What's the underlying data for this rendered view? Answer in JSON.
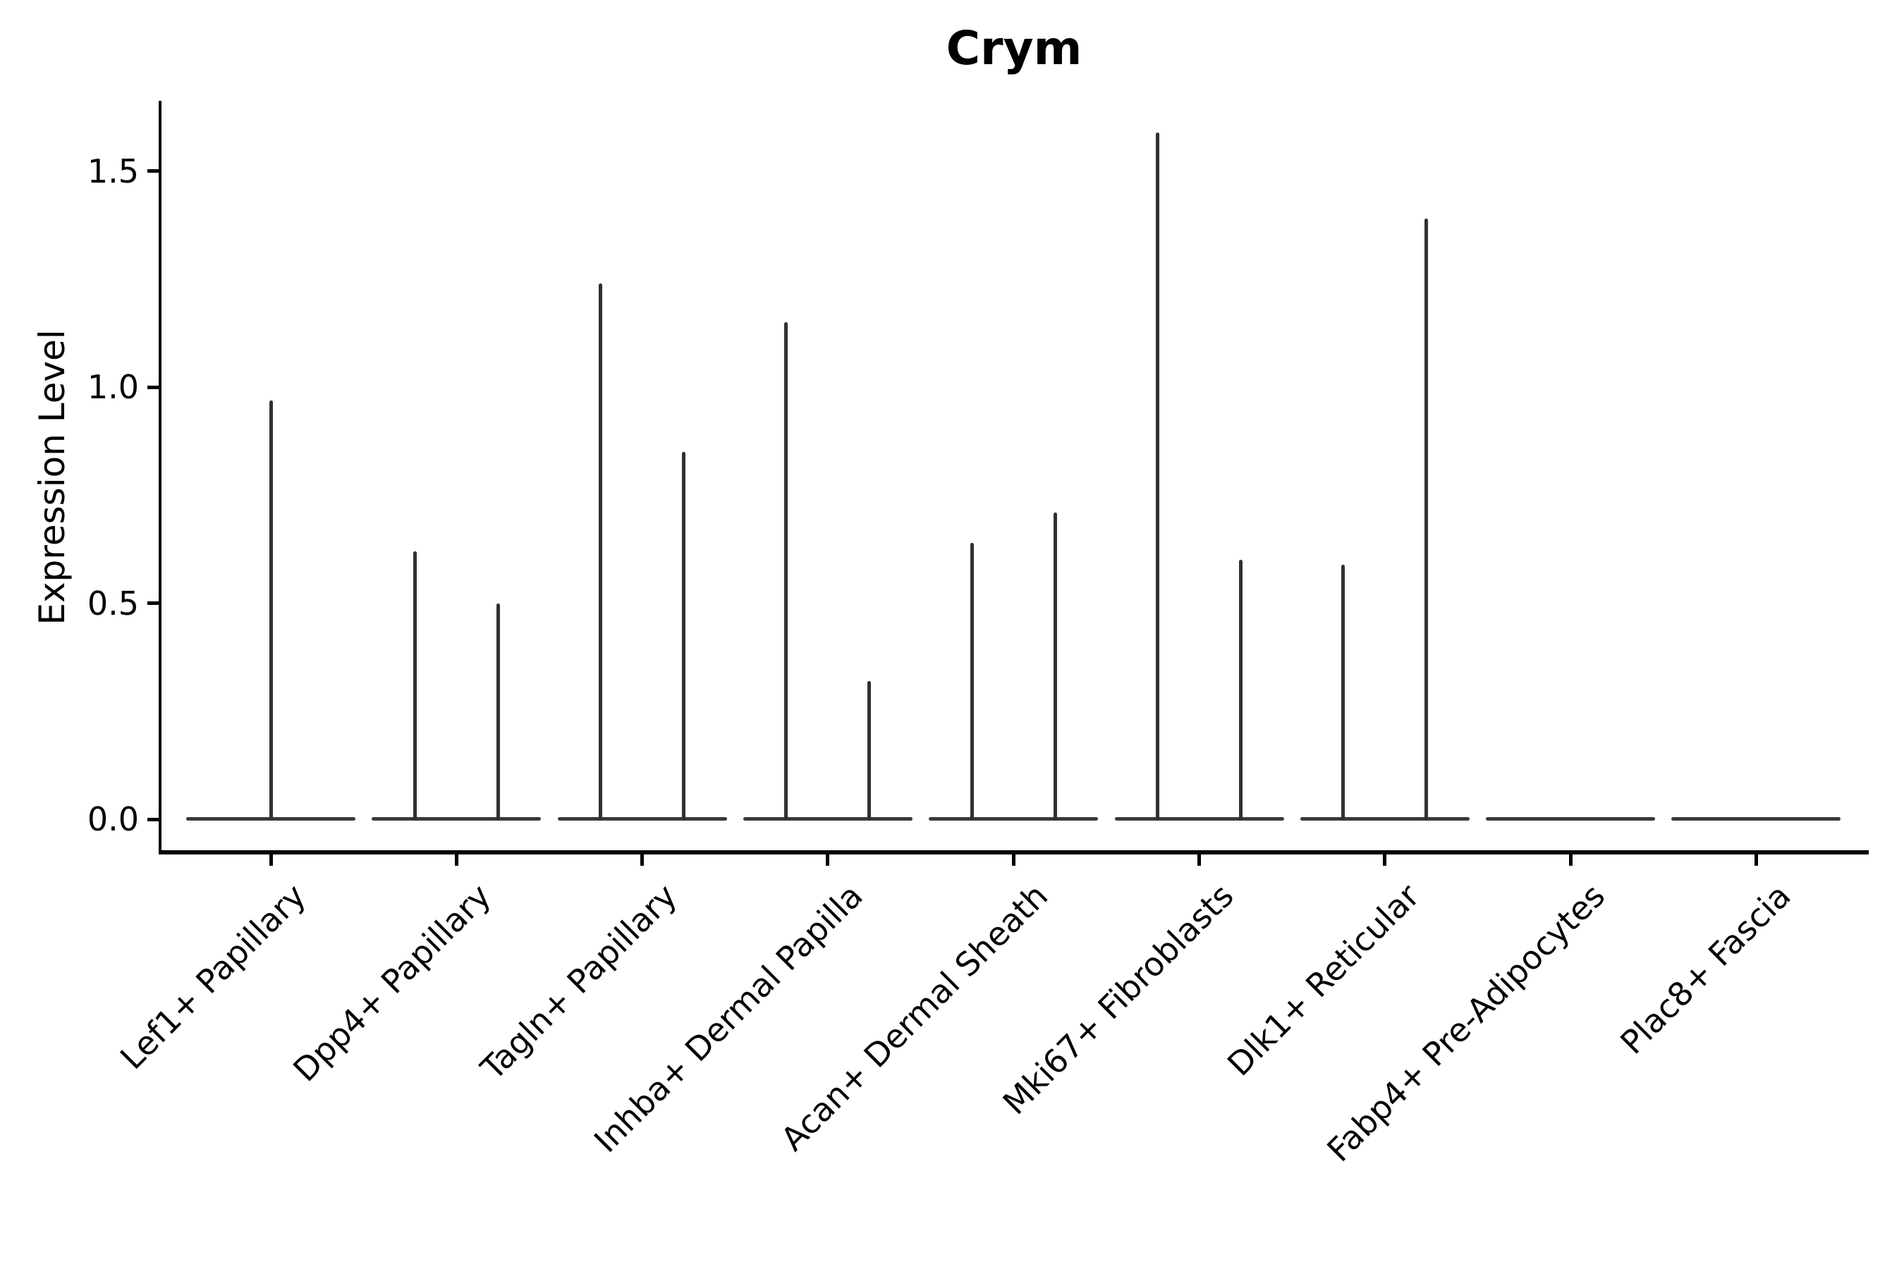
{
  "figure": {
    "title": "Crym",
    "y_axis": {
      "label": "Expression Level",
      "tick_labels": [
        "0.0",
        "0.5",
        "1.0",
        "1.5"
      ]
    },
    "x_axis": {
      "tick_labels": [
        "Lef1+ Papillary",
        "Dpp4+ Papillary",
        "Tagln+ Papillary",
        "Inhba+ Dermal Papilla",
        "Acan+ Dermal Sheath",
        "Mki67+ Fibroblasts",
        "Dlk1+ Reticular",
        "Fabp4+ Pre-Adipocytes",
        "Plac8+ Fascia"
      ]
    }
  },
  "chart_data": {
    "type": "violin",
    "title": "Crym",
    "xlabel": "",
    "ylabel": "Expression Level",
    "ylim": [
      -0.08,
      1.66
    ],
    "yticks": [
      0.0,
      0.5,
      1.0,
      1.5
    ],
    "grid": false,
    "legend_position": "none",
    "categories": [
      "Lef1+ Papillary",
      "Dpp4+ Papillary",
      "Tagln+ Papillary",
      "Inhba+ Dermal Papilla",
      "Acan+ Dermal Sheath",
      "Mki67+ Fibroblasts",
      "Dlk1+ Reticular",
      "Fabp4+ Pre-Adipocytes",
      "Plac8+ Fascia"
    ],
    "violins": [
      {
        "category": "Lef1+ Papillary",
        "spikes": [
          {
            "group": "center",
            "max_expression": 0.97
          }
        ]
      },
      {
        "category": "Dpp4+ Papillary",
        "spikes": [
          {
            "group": "left",
            "max_expression": 0.62
          },
          {
            "group": "right",
            "max_expression": 0.5
          }
        ]
      },
      {
        "category": "Tagln+ Papillary",
        "spikes": [
          {
            "group": "left",
            "max_expression": 1.24
          },
          {
            "group": "right",
            "max_expression": 0.85
          }
        ]
      },
      {
        "category": "Inhba+ Dermal Papilla",
        "spikes": [
          {
            "group": "left",
            "max_expression": 1.15
          },
          {
            "group": "right",
            "max_expression": 0.32
          }
        ]
      },
      {
        "category": "Acan+ Dermal Sheath",
        "spikes": [
          {
            "group": "left",
            "max_expression": 0.64
          },
          {
            "group": "right",
            "max_expression": 0.71
          }
        ]
      },
      {
        "category": "Mki67+ Fibroblasts",
        "spikes": [
          {
            "group": "left",
            "max_expression": 1.59
          },
          {
            "group": "right",
            "max_expression": 0.6
          }
        ]
      },
      {
        "category": "Dlk1+ Reticular",
        "spikes": [
          {
            "group": "left",
            "max_expression": 0.59
          },
          {
            "group": "right",
            "max_expression": 1.39
          }
        ]
      },
      {
        "category": "Fabp4+ Pre-Adipocytes",
        "spikes": []
      },
      {
        "category": "Plac8+ Fascia",
        "spikes": []
      }
    ],
    "baseline_value": 0.0,
    "colors": {
      "violin": "#3a3a3a",
      "spike": "#303030",
      "axis": "#000000",
      "text": "#000000"
    }
  }
}
